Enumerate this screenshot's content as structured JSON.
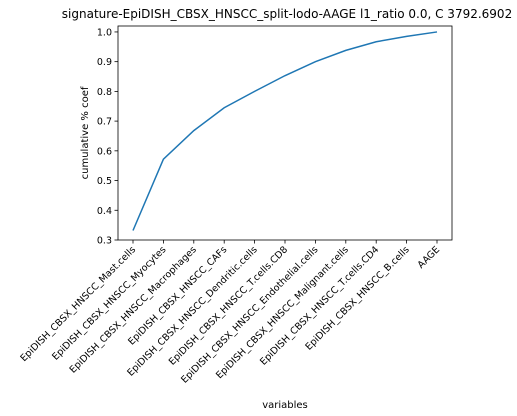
{
  "chart_data": {
    "type": "line",
    "title": "signature-EpiDISH_CBSX_HNSCC_split-lodo-AAGE l1_ratio 0.0, C 3792.6902",
    "xlabel": "variables",
    "ylabel": "cumulative % coef",
    "categories": [
      "EpiDISH_CBSX_HNSCC_Mast.cells",
      "EpiDISH_CBSX_HNSCC_Myocytes",
      "EpiDISH_CBSX_HNSCC_Macrophages",
      "EpiDISH_CBSX_HNSCC_CAFs",
      "EpiDISH_CBSX_HNSCC_Dendritic.cells",
      "EpiDISH_CBSX_HNSCC_T.cells.CD8",
      "EpiDISH_CBSX_HNSCC_Endothelial.cells",
      "EpiDISH_CBSX_HNSCC_Malignant.cells",
      "EpiDISH_CBSX_HNSCC_T.cells.CD4",
      "EpiDISH_CBSX_HNSCC_B.cells",
      "AAGE"
    ],
    "values": [
      0.332,
      0.572,
      0.668,
      0.745,
      0.8,
      0.853,
      0.9,
      0.938,
      0.967,
      0.985,
      1.0
    ],
    "ylim": [
      0.3,
      1.02
    ],
    "yticks": [
      "0.3",
      "0.4",
      "0.5",
      "0.6",
      "0.7",
      "0.8",
      "0.9",
      "1.0"
    ],
    "grid": false,
    "line_color": "#1f77b4"
  }
}
